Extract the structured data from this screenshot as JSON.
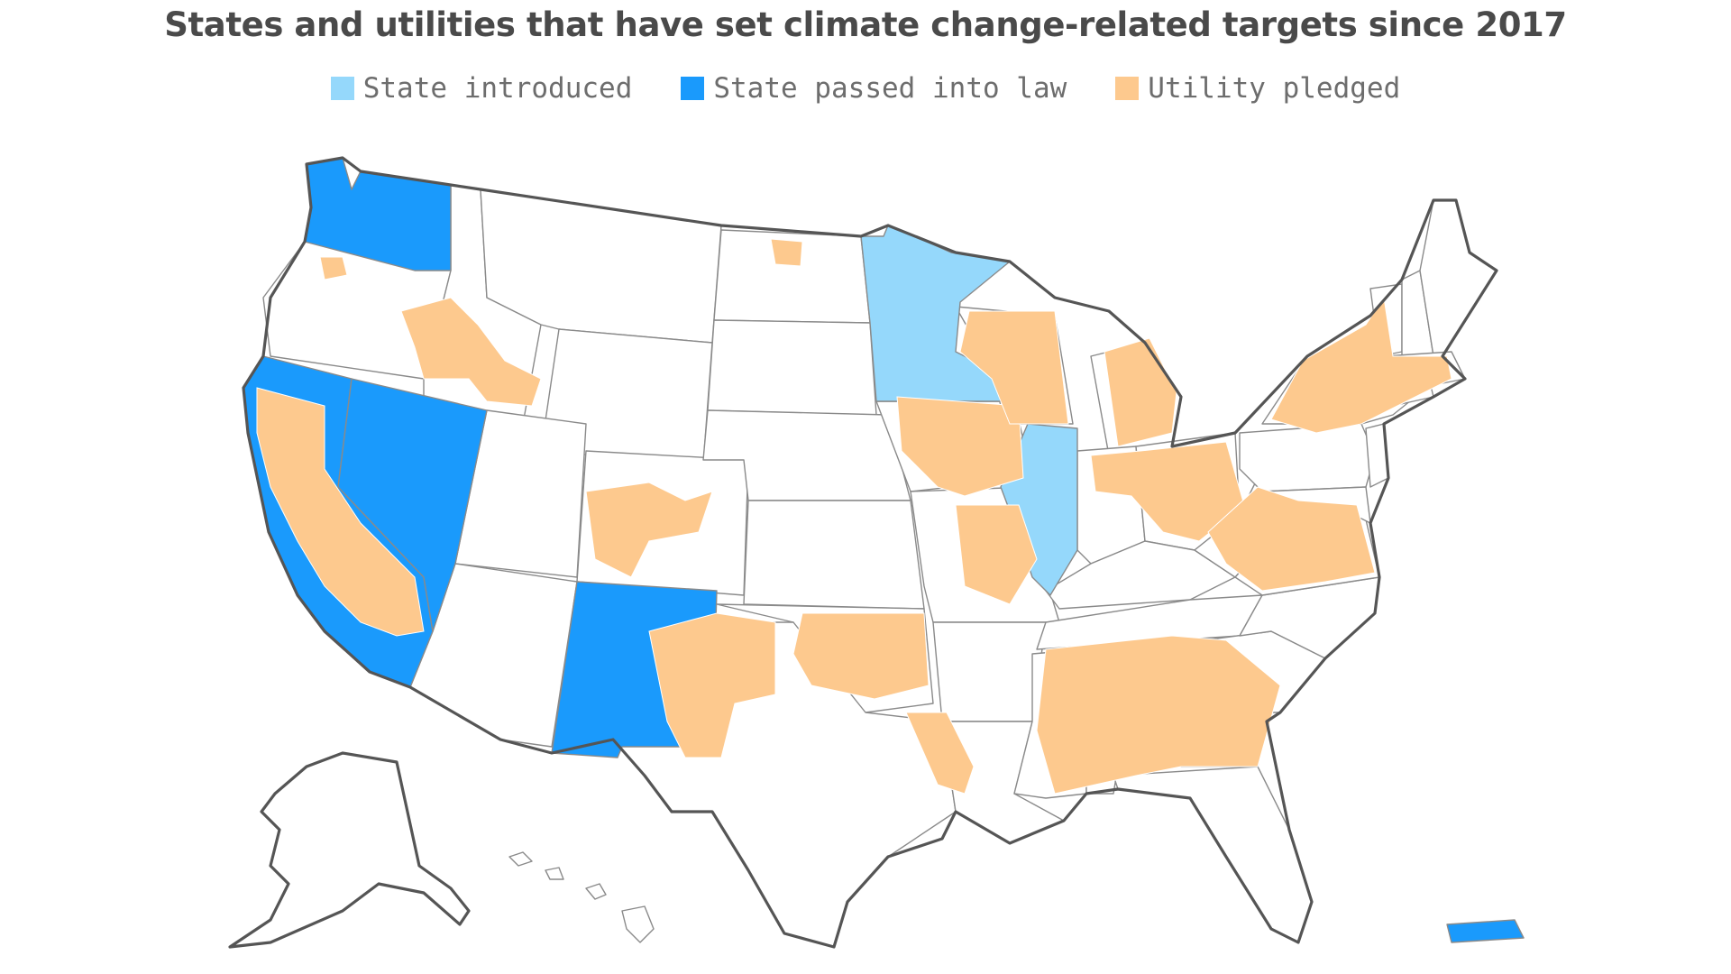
{
  "title": "States and utilities that have set climate change-related targets since 2017",
  "legend": [
    {
      "label": "State introduced",
      "color": "#95d8fb"
    },
    {
      "label": "State passed into law",
      "color": "#1a9afc"
    },
    {
      "label": "Utility pledged",
      "color": "#fdc98e"
    }
  ],
  "colors": {
    "none": "#ffffff",
    "state_introduced": "#95d8fb",
    "state_passed": "#1a9afc",
    "utility": "#fdc98e",
    "border": "#8a8a8a",
    "outline": "#555555"
  },
  "states": {
    "state_passed_into_law": [
      "Washington",
      "California",
      "Nevada",
      "New Mexico",
      "Puerto Rico"
    ],
    "state_introduced": [
      "Minnesota",
      "Illinois"
    ]
  }
}
